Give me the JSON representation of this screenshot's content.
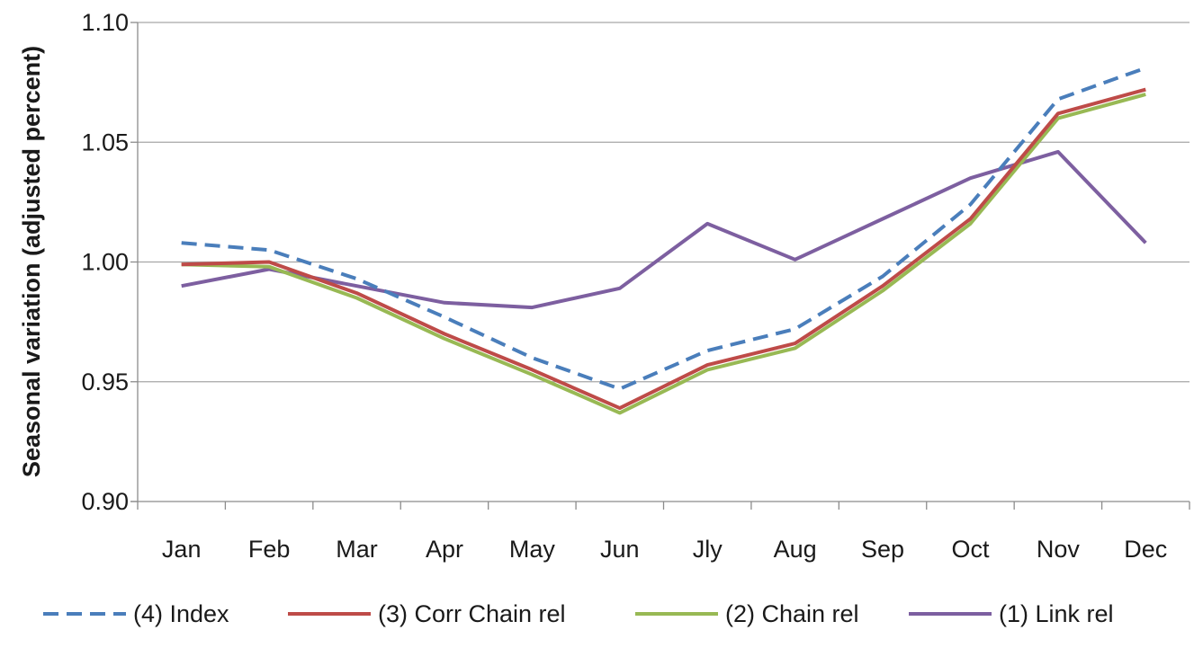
{
  "chart_data": {
    "type": "line",
    "title": "",
    "xlabel": "",
    "ylabel": "Seasonal variation (adjusted percent)",
    "categories": [
      "Jan",
      "Feb",
      "Mar",
      "Apr",
      "May",
      "Jun",
      "Jly",
      "Aug",
      "Sep",
      "Oct",
      "Nov",
      "Dec"
    ],
    "ylim": [
      0.9,
      1.1
    ],
    "yticks": [
      "0.90",
      "0.95",
      "1.00",
      "1.05",
      "1.10"
    ],
    "grid": "horizontal",
    "legend_position": "bottom",
    "series": [
      {
        "name": "(4) Index",
        "color": "#4a7ebb",
        "style": "dashed",
        "values": [
          1.008,
          1.005,
          0.993,
          0.977,
          0.96,
          0.947,
          0.963,
          0.972,
          0.994,
          1.024,
          1.068,
          1.081
        ]
      },
      {
        "name": "(3) Corr Chain rel",
        "color": "#be4b48",
        "style": "solid",
        "values": [
          0.999,
          1.0,
          0.987,
          0.97,
          0.955,
          0.939,
          0.957,
          0.966,
          0.99,
          1.018,
          1.062,
          1.072
        ]
      },
      {
        "name": "(2) Chain rel",
        "color": "#98b954",
        "style": "solid",
        "values": [
          0.999,
          0.998,
          0.985,
          0.968,
          0.953,
          0.937,
          0.955,
          0.964,
          0.988,
          1.016,
          1.06,
          1.07
        ]
      },
      {
        "name": "(1) Link rel",
        "color": "#7d5fa0",
        "style": "solid",
        "values": [
          0.99,
          0.997,
          0.99,
          0.983,
          0.981,
          0.989,
          1.016,
          1.001,
          1.018,
          1.035,
          1.046,
          1.008
        ]
      }
    ]
  }
}
